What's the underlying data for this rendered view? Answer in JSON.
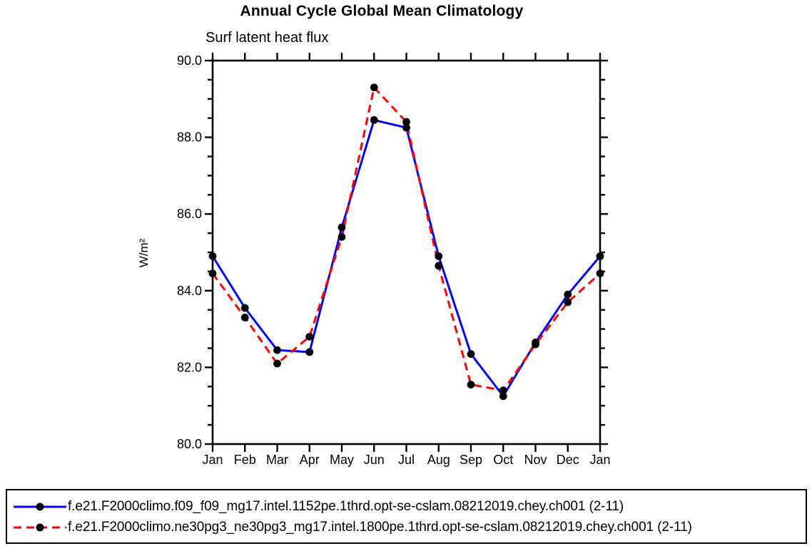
{
  "chart_data": {
    "type": "line",
    "title": "Annual Cycle Global Mean Climatology",
    "subtitle": "Surf latent heat flux",
    "xlabel": "",
    "ylabel": "W/m²",
    "categories": [
      "Jan",
      "Feb",
      "Mar",
      "Apr",
      "May",
      "Jun",
      "Jul",
      "Aug",
      "Sep",
      "Oct",
      "Nov",
      "Dec",
      "Jan"
    ],
    "series": [
      {
        "name": "f.e21.F2000climo.f09_f09_mg17.intel.1152pe.1thrd.opt-se-cslam.08212019.chey.ch001 (2-11)",
        "color": "#0000ff",
        "line_style": "solid",
        "marker": "filled-circle",
        "marker_color": "#000000",
        "values": [
          84.9,
          83.55,
          82.45,
          82.4,
          85.65,
          88.45,
          88.25,
          84.9,
          82.35,
          81.25,
          82.65,
          83.9,
          84.9
        ]
      },
      {
        "name": "f.e21.F2000climo.ne30pg3_ne30pg3_mg17.intel.1800pe.1thrd.opt-se-cslam.08212019.chey.ch001 (2-11)",
        "color": "#ff0000",
        "line_style": "dashed",
        "marker": "filled-circle",
        "marker_color": "#000000",
        "values": [
          84.45,
          83.3,
          82.1,
          82.8,
          85.4,
          89.3,
          88.4,
          84.65,
          81.55,
          81.4,
          82.6,
          83.7,
          84.45
        ]
      }
    ],
    "ylim": [
      80.0,
      90.0
    ],
    "ytick_major_interval": 2.0,
    "ytick_minor_interval": 0.5,
    "ytick_labels": [
      "80.0",
      "82.0",
      "84.0",
      "86.0",
      "88.0",
      "90.0"
    ],
    "grid": "off",
    "axis_color": "#000000",
    "legend_position": "bottom"
  }
}
